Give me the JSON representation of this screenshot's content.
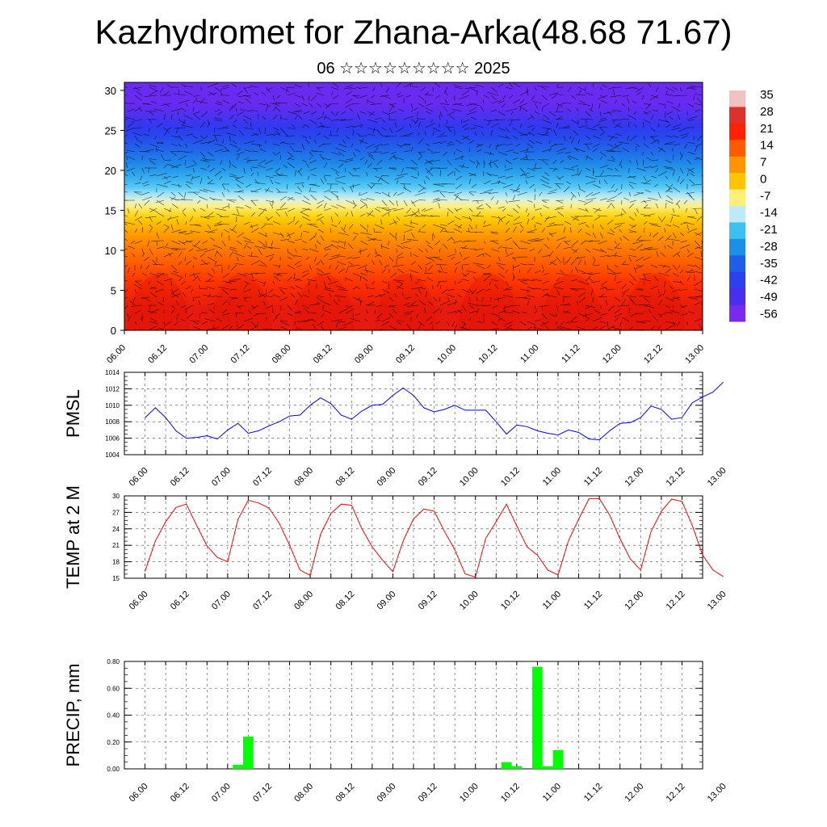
{
  "header": {
    "title": "Kazhydromet for Zhana-Arka(48.68 71.67)",
    "subtitle": "06 ☆☆☆☆☆☆☆☆☆ 2025"
  },
  "chart_data": [
    {
      "type": "heatmap",
      "title": "",
      "xlabel": "",
      "ylabel": "",
      "x_tick_labels": [
        "06.00",
        "06.12",
        "07.00",
        "07.12",
        "08.00",
        "08.12",
        "09.00",
        "09.12",
        "10.00",
        "10.12",
        "11.00",
        "11.12",
        "12.00",
        "12.12",
        "13.00"
      ],
      "y_ticks": [
        0,
        5,
        10,
        15,
        20,
        25,
        30
      ],
      "ylim": [
        0,
        31
      ],
      "colorbar": {
        "labels": [
          "35",
          "28",
          "21",
          "14",
          "7",
          "0",
          "-7",
          "-14",
          "-21",
          "-28",
          "-35",
          "-42",
          "-49",
          "-56"
        ],
        "values": [
          35,
          28,
          21,
          14,
          7,
          0,
          -7,
          -14,
          -21,
          -28,
          -35,
          -42,
          -49,
          -56
        ],
        "colors": [
          "#f2c2c2",
          "#e0302a",
          "#ff2200",
          "#ff5a00",
          "#ff9500",
          "#ffc400",
          "#fff07a",
          "#bfe8f8",
          "#3cc0f0",
          "#1a90e8",
          "#1f5ee6",
          "#2e3ff0",
          "#4a2ef0",
          "#7a2aee"
        ]
      },
      "colormap_stops": [
        {
          "v": 30,
          "c": "#e61a0e"
        },
        {
          "v": 24,
          "c": "#ff3300"
        },
        {
          "v": 18,
          "c": "#ff6600"
        },
        {
          "v": 12,
          "c": "#ff9900"
        },
        {
          "v": 6,
          "c": "#ffcc00"
        },
        {
          "v": 0,
          "c": "#ffe44a"
        },
        {
          "v": -6,
          "c": "#fff5a0"
        },
        {
          "v": -12,
          "c": "#c8ecf8"
        },
        {
          "v": -20,
          "c": "#4cc6f2"
        },
        {
          "v": -30,
          "c": "#1f8fe8"
        },
        {
          "v": -40,
          "c": "#205fe8"
        },
        {
          "v": -48,
          "c": "#2c3af0"
        },
        {
          "v": -56,
          "c": "#6a2bf0"
        }
      ],
      "profile": {
        "heights": [
          0,
          2,
          4,
          6,
          8,
          10,
          12,
          14,
          15,
          16,
          17,
          18,
          20,
          22,
          24,
          26,
          28,
          30,
          31
        ],
        "temps": [
          34,
          31,
          28,
          24,
          20,
          16,
          12,
          6,
          0,
          -8,
          -14,
          -20,
          -28,
          -36,
          -44,
          -50,
          -55,
          -58,
          -59
        ]
      },
      "wind_vectors": true
    },
    {
      "type": "line",
      "title": "",
      "ylabel": "PMSL",
      "ylim": [
        1004,
        1014
      ],
      "y_ticks": [
        1004,
        1006,
        1008,
        1010,
        1012,
        1014
      ],
      "x_tick_labels": [
        "06.00",
        "06.12",
        "07.00",
        "07.12",
        "08.00",
        "08.12",
        "09.00",
        "09.12",
        "10.00",
        "10.12",
        "11.00",
        "11.12",
        "12.00",
        "12.12",
        "13.00"
      ],
      "color": "#0000ff",
      "x": [
        0,
        3,
        6,
        9,
        12,
        15,
        18,
        21,
        24,
        27,
        30,
        33,
        36,
        39,
        42,
        45,
        48,
        51,
        54,
        57,
        60,
        63,
        66,
        69,
        72,
        75,
        78,
        81,
        84,
        87,
        90,
        93,
        96,
        99,
        102,
        105,
        108,
        111,
        114,
        117,
        120,
        123,
        126,
        129,
        132,
        135,
        138,
        141,
        144,
        147,
        150,
        153,
        156,
        159,
        162,
        165,
        168
      ],
      "values": [
        1008.5,
        1009.7,
        1008.5,
        1006.9,
        1006.0,
        1006.1,
        1006.3,
        1005.9,
        1007.0,
        1007.8,
        1006.6,
        1006.9,
        1007.5,
        1008.0,
        1008.7,
        1008.8,
        1010.0,
        1010.9,
        1010.2,
        1008.8,
        1008.3,
        1009.3,
        1010.0,
        1010.1,
        1011.2,
        1012.1,
        1011.2,
        1009.7,
        1009.2,
        1009.5,
        1010.0,
        1009.4,
        1009.4,
        1009.4,
        1008.0,
        1006.5,
        1007.6,
        1007.4,
        1006.9,
        1006.6,
        1006.4,
        1007.0,
        1006.7,
        1005.9,
        1005.8,
        1006.9,
        1007.8,
        1007.9,
        1008.5,
        1009.9,
        1009.5,
        1008.3,
        1008.5,
        1010.3,
        1011.0,
        1011.6,
        1012.8
      ]
    },
    {
      "type": "line",
      "title": "",
      "ylabel": "TEMP at 2 M",
      "ylim": [
        15,
        30
      ],
      "y_ticks": [
        15,
        18,
        21,
        24,
        27,
        30
      ],
      "x_tick_labels": [
        "06.00",
        "06.12",
        "07.00",
        "07.12",
        "08.00",
        "08.12",
        "09.00",
        "09.12",
        "10.00",
        "10.12",
        "11.00",
        "11.12",
        "12.00",
        "12.12",
        "13.00"
      ],
      "color": "#ff0000",
      "x": [
        0,
        3,
        6,
        9,
        12,
        15,
        18,
        21,
        24,
        27,
        30,
        33,
        36,
        39,
        42,
        45,
        48,
        51,
        54,
        57,
        60,
        63,
        66,
        69,
        72,
        75,
        78,
        81,
        84,
        87,
        90,
        93,
        96,
        99,
        102,
        105,
        108,
        111,
        114,
        117,
        120,
        123,
        126,
        129,
        132,
        135,
        138,
        141,
        144,
        147,
        150,
        153,
        156,
        159,
        162,
        165,
        168
      ],
      "values": [
        16.3,
        21.8,
        25.3,
        27.9,
        28.5,
        24.6,
        20.9,
        18.8,
        18.0,
        25.7,
        29.2,
        28.7,
        27.8,
        25.0,
        21.0,
        16.5,
        15.5,
        23.0,
        26.8,
        28.5,
        28.3,
        24.0,
        20.7,
        18.3,
        16.2,
        21.8,
        25.8,
        27.6,
        27.2,
        23.5,
        20.2,
        15.8,
        15.2,
        22.3,
        25.3,
        28.5,
        24.5,
        20.7,
        19.2,
        16.5,
        15.6,
        21.8,
        25.8,
        29.5,
        29.5,
        26.5,
        22.2,
        18.5,
        16.5,
        23.5,
        27.2,
        29.4,
        29.0,
        24.6,
        19.2,
        16.5,
        15.3
      ]
    },
    {
      "type": "bar",
      "title": "",
      "ylabel": "PRECIP, mm",
      "ylim": [
        0,
        0.8
      ],
      "y_tick_labels": [
        "0.00",
        "0.20",
        "0.40",
        "0.60",
        "0.80"
      ],
      "x_tick_labels": [
        "06.00",
        "06.12",
        "07.00",
        "07.12",
        "08.00",
        "08.12",
        "09.00",
        "09.12",
        "10.00",
        "10.12",
        "11.00",
        "11.12",
        "12.00",
        "12.12",
        "13.00"
      ],
      "color": "#00ff00",
      "bars": [
        {
          "x": 33,
          "value": 0.03
        },
        {
          "x": 36,
          "value": 0.24
        },
        {
          "x": 111,
          "value": 0.05
        },
        {
          "x": 114,
          "value": 0.02
        },
        {
          "x": 120,
          "value": 0.76
        },
        {
          "x": 123,
          "value": 0.02
        },
        {
          "x": 126,
          "value": 0.14
        }
      ]
    }
  ]
}
